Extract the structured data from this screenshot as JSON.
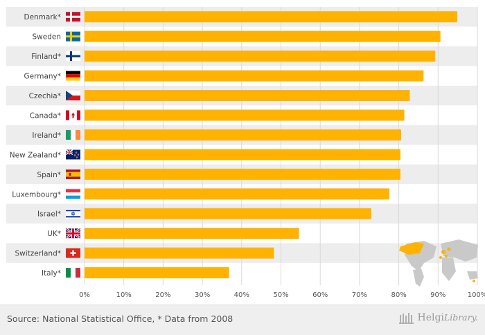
{
  "chart_data": {
    "type": "bar",
    "orientation": "horizontal",
    "title": "",
    "xlabel": "",
    "ylabel": "",
    "xlim": [
      0,
      100
    ],
    "categories": [
      "Denmark*",
      "Sweden",
      "Finland*",
      "Germany*",
      "Czechia*",
      "Canada*",
      "Ireland*",
      "New Zealand*",
      "Spain*",
      "Luxembourg*",
      "Israel*",
      "UK*",
      "Switzerland*",
      "Italy*"
    ],
    "values": [
      94.9,
      90.6,
      89.3,
      86.3,
      82.8,
      81.4,
      80.6,
      80.4,
      80.4,
      77.6,
      73.0,
      54.6,
      48.2,
      36.8
    ],
    "tick_labels": [
      "0%",
      "10%",
      "20%",
      "30%",
      "40%",
      "50%",
      "60%",
      "70%",
      "80%",
      "90%",
      "100%"
    ],
    "grid": true
  },
  "colors": {
    "bar": "#FFB300",
    "band": "#ededed",
    "label": "#444444",
    "tick": "#555555"
  },
  "flags": [
    "dk",
    "se",
    "fi",
    "de",
    "cz",
    "ca",
    "ie",
    "nz",
    "es",
    "lu",
    "il",
    "uk",
    "ch",
    "it"
  ],
  "footer": {
    "source": "Source: National Statistical Office, * Data from 2008",
    "brand_helgi": "Helgi",
    "brand_library": "Library."
  }
}
